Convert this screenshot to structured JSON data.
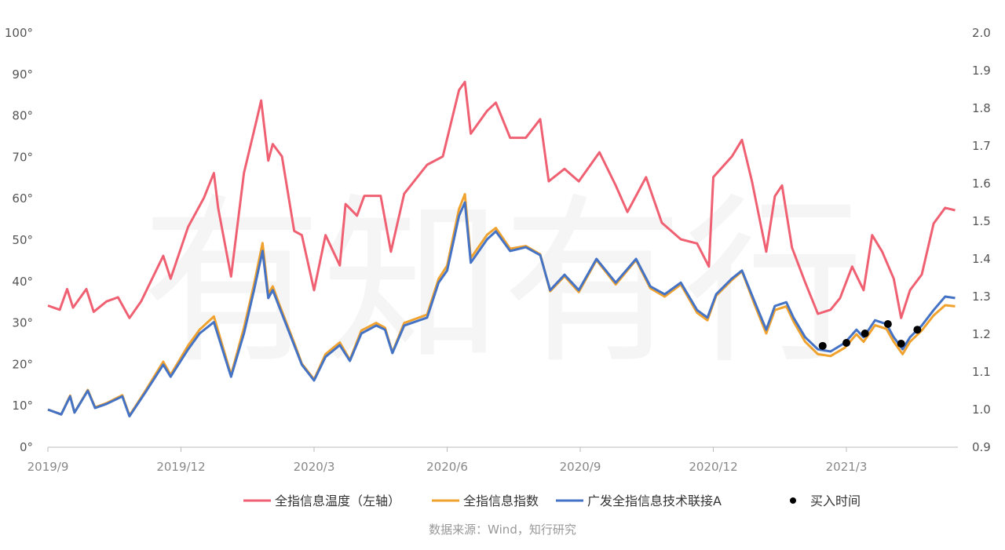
{
  "watermark": "有知有行",
  "source_note": "数据来源：Wind，知行研究",
  "chart_data": {
    "type": "line",
    "title": "",
    "xlabel": "",
    "ylabel": "",
    "x_ticks": [
      "2019/9",
      "2019/12",
      "2020/3",
      "2020/6",
      "2020/9",
      "2020/12",
      "2021/3"
    ],
    "x_tick_dates": [
      "2019-09-01",
      "2019-12-01",
      "2020-03-01",
      "2020-06-01",
      "2020-09-01",
      "2020-12-01",
      "2021-03-01"
    ],
    "y_left": {
      "range": [
        0,
        100
      ],
      "ticks": [
        "0°",
        "10°",
        "20°",
        "30°",
        "40°",
        "50°",
        "60°",
        "70°",
        "80°",
        "90°",
        "100°"
      ]
    },
    "y_right": {
      "range": [
        0.9,
        2.0
      ],
      "ticks": [
        "0.9",
        "1.0",
        "1.1",
        "1.2",
        "1.3",
        "1.4",
        "1.5",
        "1.6",
        "1.7",
        "1.8",
        "1.9",
        "2.0"
      ]
    },
    "grid": false,
    "legend_position": "bottom",
    "colors": {
      "temperature": "#ef6172",
      "index": "#f0a22e",
      "fund": "#4472c4",
      "buy": "#000000"
    },
    "series": [
      {
        "name": "全指信息温度（左轴）",
        "axis": "left",
        "x": [
          "2019-09-01",
          "2019-09-09",
          "2019-09-14",
          "2019-09-18",
          "2019-09-27",
          "2019-10-02",
          "2019-10-11",
          "2019-10-19",
          "2019-10-27",
          "2019-11-04",
          "2019-11-19",
          "2019-11-24",
          "2019-12-06",
          "2019-12-17",
          "2019-12-24",
          "2019-12-27",
          "2020-01-05",
          "2020-01-14",
          "2020-01-23",
          "2020-01-26",
          "2020-01-31",
          "2020-02-03",
          "2020-02-09",
          "2020-02-17",
          "2020-02-22",
          "2020-03-01",
          "2020-03-09",
          "2020-03-19",
          "2020-03-23",
          "2020-03-31",
          "2020-04-05",
          "2020-04-16",
          "2020-04-23",
          "2020-05-02",
          "2020-05-18",
          "2020-05-29",
          "2020-06-09",
          "2020-06-13",
          "2020-06-17",
          "2020-06-28",
          "2020-07-04",
          "2020-07-14",
          "2020-07-25",
          "2020-08-04",
          "2020-08-10",
          "2020-08-21",
          "2020-08-31",
          "2020-09-14",
          "2020-09-25",
          "2020-10-03",
          "2020-10-16",
          "2020-10-27",
          "2020-11-09",
          "2020-11-20",
          "2020-11-28",
          "2020-12-01",
          "2020-12-14",
          "2020-12-21",
          "2020-12-28",
          "2021-01-07",
          "2021-01-13",
          "2021-01-18",
          "2021-01-25",
          "2021-02-03",
          "2021-02-11",
          "2021-02-19",
          "2021-02-25",
          "2021-03-05",
          "2021-03-13",
          "2021-03-19",
          "2021-03-26",
          "2021-04-03",
          "2021-04-08",
          "2021-04-14",
          "2021-04-22",
          "2021-04-30",
          "2021-05-08",
          "2021-05-15"
        ],
        "values": [
          34,
          33,
          38,
          33.5,
          38,
          32.5,
          35,
          36,
          31,
          35,
          46,
          40.5,
          53,
          60,
          66,
          57.5,
          41,
          66,
          79,
          83.5,
          69,
          73,
          70,
          52,
          51,
          37.7,
          51,
          43.7,
          58.5,
          55.7,
          60.5,
          60.5,
          47,
          61,
          68,
          70,
          86,
          88,
          75.5,
          81,
          83,
          74.5,
          74.5,
          79,
          64,
          67,
          64,
          71,
          63,
          56.6,
          65,
          54,
          50,
          49,
          43.4,
          65,
          70,
          74,
          64,
          47,
          60.4,
          63,
          48,
          39.6,
          32,
          33,
          35.8,
          43.4,
          37.7,
          51,
          47,
          40.5,
          31,
          37.7,
          41.5,
          53.8,
          57.6,
          57
        ]
      },
      {
        "name": "全指信息指数",
        "axis": "right",
        "x": [
          "2019-09-01",
          "2019-09-10",
          "2019-09-16",
          "2019-09-19",
          "2019-09-28",
          "2019-10-03",
          "2019-10-11",
          "2019-10-22",
          "2019-10-27",
          "2019-11-07",
          "2019-11-19",
          "2019-11-24",
          "2019-12-06",
          "2019-12-14",
          "2019-12-24",
          "2020-01-05",
          "2020-01-14",
          "2020-01-21",
          "2020-01-27",
          "2020-01-31",
          "2020-02-03",
          "2020-02-07",
          "2020-02-17",
          "2020-02-22",
          "2020-03-01",
          "2020-03-09",
          "2020-03-19",
          "2020-03-26",
          "2020-04-03",
          "2020-04-13",
          "2020-04-19",
          "2020-04-24",
          "2020-05-02",
          "2020-05-18",
          "2020-05-26",
          "2020-06-01",
          "2020-06-09",
          "2020-06-13",
          "2020-06-17",
          "2020-06-28",
          "2020-07-04",
          "2020-07-14",
          "2020-07-25",
          "2020-08-04",
          "2020-08-11",
          "2020-08-21",
          "2020-08-31",
          "2020-09-12",
          "2020-09-25",
          "2020-10-09",
          "2020-10-19",
          "2020-10-29",
          "2020-11-09",
          "2020-11-20",
          "2020-11-27",
          "2020-12-03",
          "2020-12-14",
          "2020-12-21",
          "2020-12-30",
          "2021-01-07",
          "2021-01-13",
          "2021-01-21",
          "2021-01-26",
          "2021-02-03",
          "2021-02-11",
          "2021-02-19",
          "2021-02-28",
          "2021-03-08",
          "2021-03-13",
          "2021-03-21",
          "2021-03-29",
          "2021-04-03",
          "2021-04-09",
          "2021-04-14",
          "2021-04-22",
          "2021-04-30",
          "2021-05-08",
          "2021-05-15"
        ],
        "values": [
          0.998,
          0.985,
          1.035,
          0.99,
          1.05,
          1.004,
          1.015,
          1.036,
          0.982,
          1.048,
          1.125,
          1.09,
          1.168,
          1.21,
          1.245,
          1.09,
          1.215,
          1.33,
          1.44,
          1.305,
          1.325,
          1.28,
          1.175,
          1.12,
          1.078,
          1.145,
          1.176,
          1.13,
          1.208,
          1.228,
          1.215,
          1.15,
          1.228,
          1.25,
          1.345,
          1.38,
          1.53,
          1.57,
          1.4,
          1.462,
          1.48,
          1.425,
          1.432,
          1.41,
          1.312,
          1.352,
          1.31,
          1.395,
          1.33,
          1.395,
          1.32,
          1.298,
          1.33,
          1.255,
          1.235,
          1.3,
          1.342,
          1.365,
          1.275,
          1.2,
          1.262,
          1.272,
          1.232,
          1.178,
          1.145,
          1.14,
          1.162,
          1.198,
          1.178,
          1.222,
          1.212,
          1.178,
          1.145,
          1.178,
          1.208,
          1.248,
          1.275,
          1.272
        ]
      },
      {
        "name": "广发全指信息技术联接A",
        "axis": "right",
        "x": [
          "2019-09-01",
          "2019-09-10",
          "2019-09-16",
          "2019-09-19",
          "2019-09-28",
          "2019-10-03",
          "2019-10-11",
          "2019-10-22",
          "2019-10-27",
          "2019-11-07",
          "2019-11-19",
          "2019-11-24",
          "2019-12-06",
          "2019-12-14",
          "2019-12-24",
          "2020-01-05",
          "2020-01-14",
          "2020-01-21",
          "2020-01-27",
          "2020-01-31",
          "2020-02-03",
          "2020-02-07",
          "2020-02-17",
          "2020-02-22",
          "2020-03-01",
          "2020-03-09",
          "2020-03-19",
          "2020-03-26",
          "2020-04-03",
          "2020-04-13",
          "2020-04-19",
          "2020-04-24",
          "2020-05-02",
          "2020-05-18",
          "2020-05-26",
          "2020-06-01",
          "2020-06-09",
          "2020-06-13",
          "2020-06-17",
          "2020-06-28",
          "2020-07-04",
          "2020-07-14",
          "2020-07-25",
          "2020-08-04",
          "2020-08-11",
          "2020-08-21",
          "2020-08-31",
          "2020-09-12",
          "2020-09-25",
          "2020-10-09",
          "2020-10-19",
          "2020-10-29",
          "2020-11-09",
          "2020-11-20",
          "2020-11-27",
          "2020-12-03",
          "2020-12-14",
          "2020-12-21",
          "2020-12-30",
          "2021-01-07",
          "2021-01-13",
          "2021-01-21",
          "2021-01-26",
          "2021-02-03",
          "2021-02-11",
          "2021-02-19",
          "2021-02-28",
          "2021-03-08",
          "2021-03-13",
          "2021-03-21",
          "2021-03-29",
          "2021-04-03",
          "2021-04-09",
          "2021-04-14",
          "2021-04-22",
          "2021-04-30",
          "2021-05-08",
          "2021-05-15"
        ],
        "values": [
          0.998,
          0.985,
          1.033,
          0.99,
          1.048,
          1.002,
          1.013,
          1.033,
          0.98,
          1.044,
          1.117,
          1.085,
          1.158,
          1.2,
          1.23,
          1.085,
          1.2,
          1.315,
          1.419,
          1.294,
          1.315,
          1.273,
          1.169,
          1.117,
          1.075,
          1.138,
          1.169,
          1.127,
          1.2,
          1.221,
          1.21,
          1.148,
          1.221,
          1.242,
          1.335,
          1.367,
          1.512,
          1.548,
          1.388,
          1.45,
          1.471,
          1.419,
          1.429,
          1.408,
          1.315,
          1.356,
          1.315,
          1.398,
          1.335,
          1.398,
          1.325,
          1.304,
          1.335,
          1.262,
          1.242,
          1.304,
          1.346,
          1.367,
          1.283,
          1.21,
          1.273,
          1.283,
          1.242,
          1.19,
          1.158,
          1.152,
          1.175,
          1.21,
          1.19,
          1.235,
          1.225,
          1.19,
          1.158,
          1.19,
          1.221,
          1.262,
          1.298,
          1.294
        ]
      },
      {
        "name": "买入时间",
        "axis": "right",
        "type": "scatter",
        "x": [
          "2021-02-14",
          "2021-03-01",
          "2021-03-14",
          "2021-03-30",
          "2021-04-08",
          "2021-04-19"
        ],
        "values": [
          1.167,
          1.175,
          1.2,
          1.225,
          1.173,
          1.21
        ]
      }
    ]
  }
}
